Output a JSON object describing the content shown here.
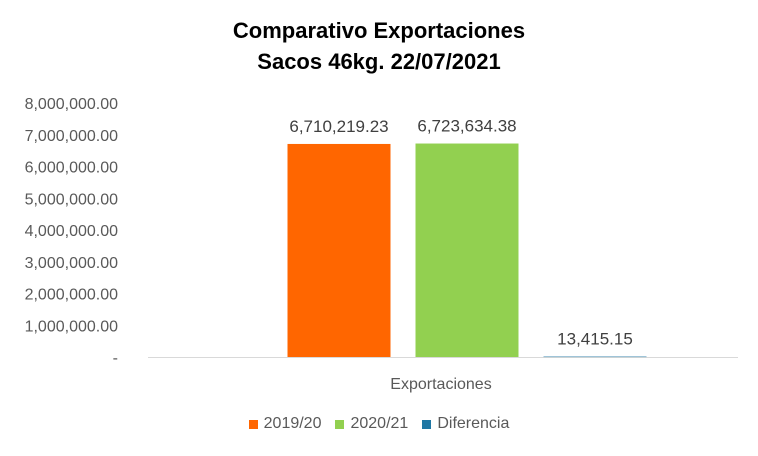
{
  "chart_data": {
    "type": "bar",
    "title_lines": [
      "Comparativo Exportaciones",
      "Sacos 46kg. 22/07/2021"
    ],
    "categories": [
      "Exportaciones"
    ],
    "series": [
      {
        "name": "2019/20",
        "values": [
          6710219.23
        ],
        "label": "6,710,219.23",
        "color": "#FF6600"
      },
      {
        "name": "2020/21",
        "values": [
          6723634.38
        ],
        "label": "6,723,634.38",
        "color": "#92D050"
      },
      {
        "name": "Diferencia",
        "values": [
          13415.15
        ],
        "label": "13,415.15",
        "color": "#1F77A4"
      }
    ],
    "ylim": [
      0,
      8000000
    ],
    "yticks": [
      {
        "value": 0,
        "label": "-"
      },
      {
        "value": 1000000,
        "label": "1,000,000.00"
      },
      {
        "value": 2000000,
        "label": "2,000,000.00"
      },
      {
        "value": 3000000,
        "label": "3,000,000.00"
      },
      {
        "value": 4000000,
        "label": "4,000,000.00"
      },
      {
        "value": 5000000,
        "label": "5,000,000.00"
      },
      {
        "value": 6000000,
        "label": "6,000,000.00"
      },
      {
        "value": 7000000,
        "label": "7,000,000.00"
      },
      {
        "value": 8000000,
        "label": "8,000,000.00"
      }
    ],
    "grid": false,
    "legend_position": "bottom"
  }
}
